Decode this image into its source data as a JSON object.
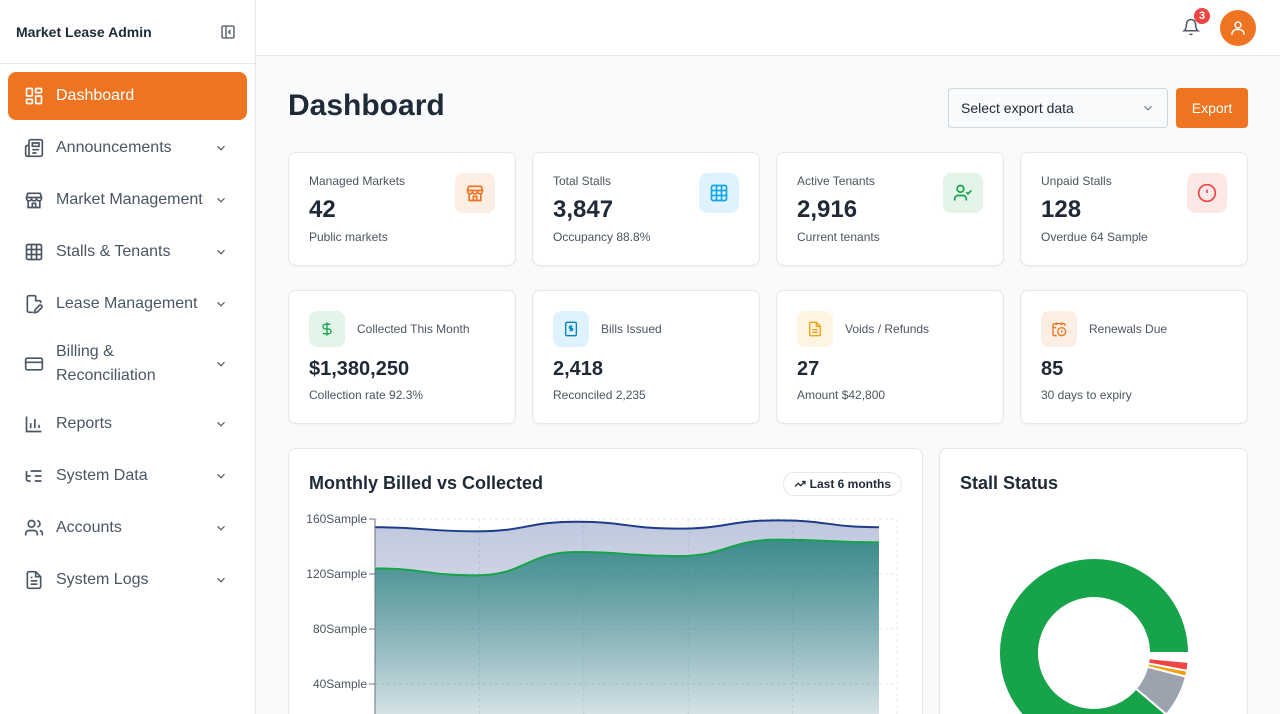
{
  "app": {
    "title": "Market Lease Admin"
  },
  "sidebar": {
    "items": [
      {
        "label": "Dashboard",
        "icon": "layout-dashboard-icon"
      },
      {
        "label": "Announcements",
        "icon": "newspaper-icon"
      },
      {
        "label": "Market Management",
        "icon": "store-icon"
      },
      {
        "label": "Stalls & Tenants",
        "icon": "grid-icon"
      },
      {
        "label": "Lease Management",
        "icon": "file-edit-icon"
      },
      {
        "label": "Billing & Reconciliation",
        "icon": "credit-card-icon"
      },
      {
        "label": "Reports",
        "icon": "bar-chart-icon"
      },
      {
        "label": "System Data",
        "icon": "list-tree-icon"
      },
      {
        "label": "Accounts",
        "icon": "users-icon"
      },
      {
        "label": "System Logs",
        "icon": "file-text-icon"
      }
    ]
  },
  "topbar": {
    "notification_count": "3"
  },
  "page": {
    "title": "Dashboard"
  },
  "export": {
    "select_placeholder": "Select export data",
    "button_label": "Export"
  },
  "stats": [
    {
      "label": "Managed Markets",
      "value": "42",
      "sub": "Public markets",
      "icon": "store-icon",
      "color": "#ee7422",
      "bg": "#fdeee4"
    },
    {
      "label": "Total Stalls",
      "value": "3,847",
      "sub": "Occupancy 88.8%",
      "icon": "grid-icon",
      "color": "#0ea5e9",
      "bg": "#e0f2fe"
    },
    {
      "label": "Active Tenants",
      "value": "2,916",
      "sub": "Current tenants",
      "icon": "user-check-icon",
      "color": "#16a34a",
      "bg": "#e3f4e9"
    },
    {
      "label": "Unpaid Stalls",
      "value": "128",
      "sub": "Overdue 64 Sample",
      "icon": "alert-circle-icon",
      "color": "#ef4444",
      "bg": "#fde8e8"
    }
  ],
  "finance": [
    {
      "label": "Collected This Month",
      "value": "$1,380,250",
      "sub": "Collection rate 92.3%",
      "icon": "dollar-icon",
      "color": "#16a34a",
      "bg": "#e3f4e9"
    },
    {
      "label": "Bills Issued",
      "value": "2,418",
      "sub": "Reconciled 2,235",
      "icon": "receipt-icon",
      "color": "#0284c7",
      "bg": "#e0f2fe"
    },
    {
      "label": "Voids / Refunds",
      "value": "27",
      "sub": "Amount $42,800",
      "icon": "file-icon",
      "color": "#f59e0b",
      "bg": "#fef4e2"
    },
    {
      "label": "Renewals Due",
      "value": "85",
      "sub": "30 days to expiry",
      "icon": "calendar-clock-icon",
      "color": "#ee7422",
      "bg": "#fdeee4"
    }
  ],
  "chart_section": {
    "title": "Monthly Billed vs Collected",
    "range_label": "Last 6 months"
  },
  "status_section": {
    "title": "Stall Status"
  },
  "chart_data": [
    {
      "type": "area",
      "title": "Monthly Billed vs Collected",
      "xlabel": "",
      "ylabel": "",
      "y_ticks": [
        "40Sample",
        "80Sample",
        "120Sample",
        "160Sample"
      ],
      "y_tick_values": [
        40,
        80,
        120,
        160
      ],
      "ylim": [
        0,
        160
      ],
      "x": [
        1,
        2,
        3,
        4,
        5,
        6
      ],
      "grid": true,
      "series": [
        {
          "values": [
            154,
            151,
            158,
            153,
            159,
            154
          ],
          "color": "#1e3a8a"
        },
        {
          "values": [
            124,
            119,
            136,
            133,
            145,
            143
          ],
          "color": "#16a34a"
        }
      ]
    },
    {
      "type": "pie",
      "title": "Stall Status",
      "slices": [
        {
          "value": 88.8,
          "color": "#16a34a"
        },
        {
          "value": 7.2,
          "color": "#9ca3af"
        },
        {
          "value": 1.0,
          "color": "#f59e0b"
        },
        {
          "value": 1.5,
          "color": "#ef4444"
        },
        {
          "value": 1.5,
          "color": "#ffffff"
        }
      ]
    }
  ]
}
